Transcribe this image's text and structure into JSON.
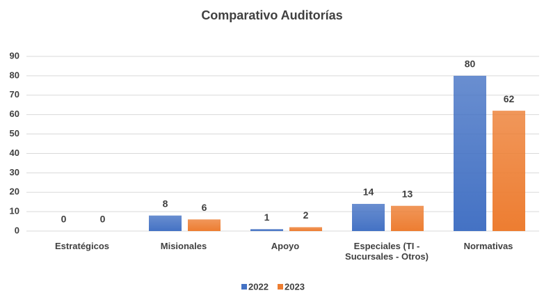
{
  "chart_data": {
    "type": "bar",
    "title": "Comparativo Auditorías",
    "categories": [
      "Estratégicos",
      "Misionales",
      "Apoyo",
      "Especiales (TI - Sucursales - Otros)",
      "Normativas"
    ],
    "series": [
      {
        "name": "2022",
        "color": "#4472c4",
        "values": [
          0,
          8,
          1,
          14,
          80
        ]
      },
      {
        "name": "2023",
        "color": "#ed7d31",
        "values": [
          0,
          6,
          2,
          13,
          62
        ]
      }
    ],
    "ylim": [
      0,
      90
    ],
    "yticks": [
      0,
      10,
      20,
      30,
      40,
      50,
      60,
      70,
      80,
      90
    ],
    "grid": true,
    "legend": "bottom"
  }
}
